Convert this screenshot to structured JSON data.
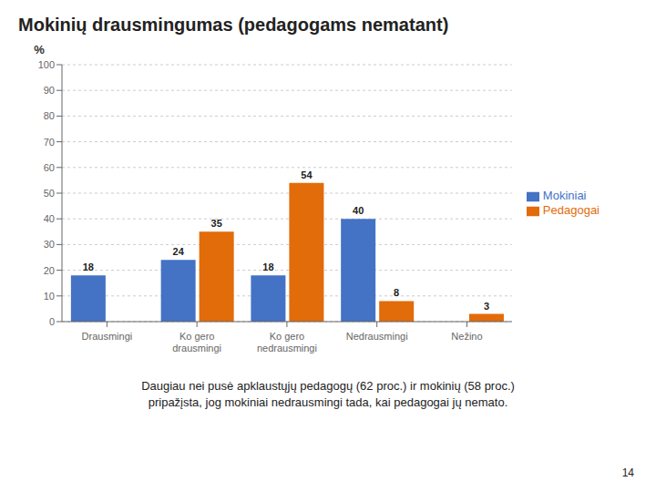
{
  "chart_data": {
    "type": "bar",
    "title": "Mokinių drausmingumas (pedagogams nematant)",
    "subtitle": "Daugiau nei pusė apklaustųjų pedagogų (62 proc.) ir mokinių (58 proc.)\npripažįsta, jog mokiniai nedrausmingi tada, kai pedagogai jų nemato.",
    "ylabel": "%",
    "annotations": [
      "14"
    ],
    "categories": [
      "Drausmingi",
      "Ko gero\ndrausmingi",
      "Ko gero\nnedrausmingi",
      "Nedrausmingi",
      "Nežino"
    ],
    "series": [
      {
        "name": "Mokiniai",
        "color": "#4472C4",
        "values": [
          18,
          24,
          18,
          40,
          0
        ]
      },
      {
        "name": "Pedagogai",
        "color": "#E26B0A",
        "values": [
          0,
          35,
          54,
          8,
          3
        ]
      }
    ],
    "ylim": [
      0,
      100
    ],
    "yticks": [
      0,
      10,
      20,
      30,
      40,
      50,
      60,
      70,
      80,
      90,
      100
    ],
    "grid": true,
    "legend": "right",
    "data_labels": true
  }
}
